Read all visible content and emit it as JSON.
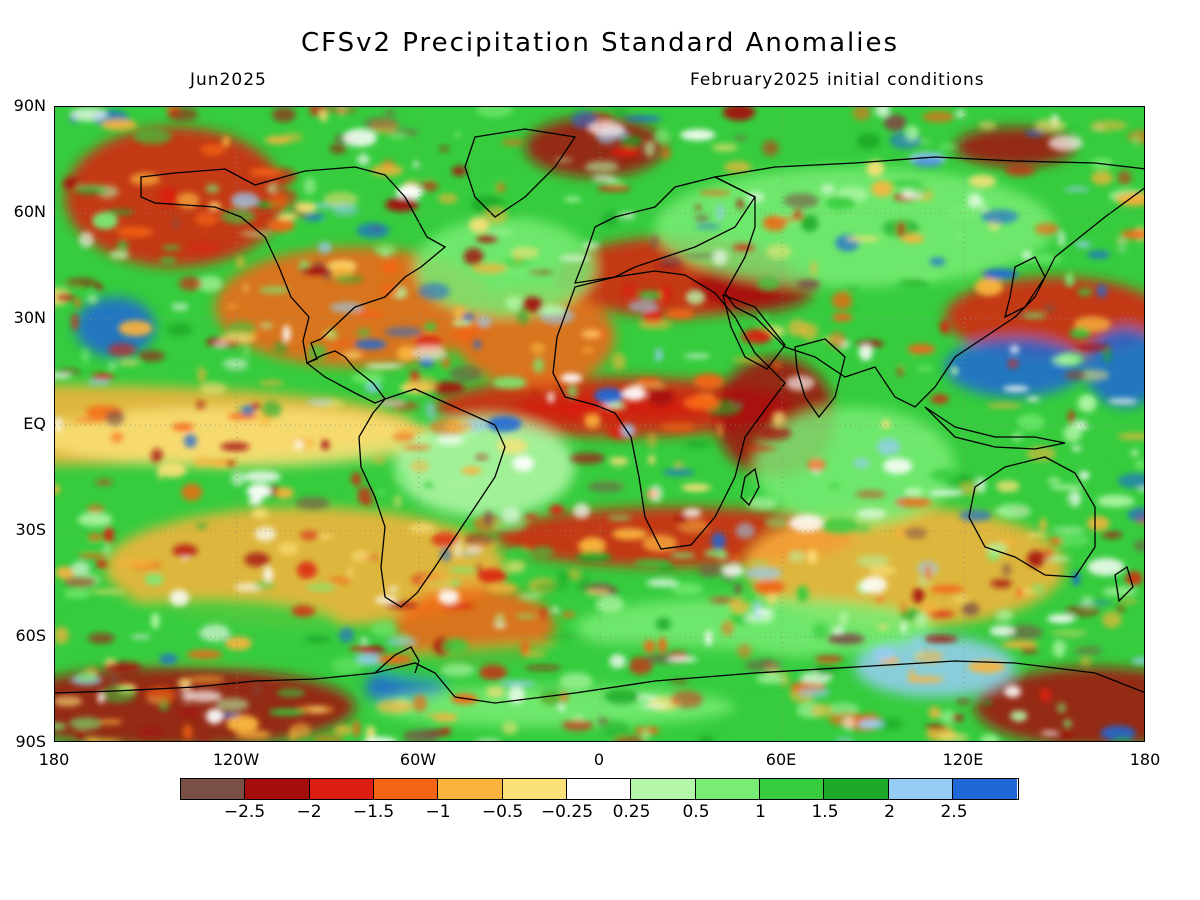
{
  "title": "CFSv2 Precipitation Standard Anomalies",
  "valid_month": "Jun2025",
  "initial_conditions": "February2025 initial conditions",
  "lat_labels": [
    "90N",
    "60N",
    "30N",
    "EQ",
    "30S",
    "60S",
    "90S"
  ],
  "lon_labels": [
    "180",
    "120W",
    "60W",
    "0",
    "60E",
    "120E",
    "180"
  ],
  "colorbar": {
    "colors": [
      "#7a5046",
      "#a50c0c",
      "#dc1e12",
      "#f56414",
      "#fab33c",
      "#fce178",
      "#ffffff",
      "#b4f7a8",
      "#78ec74",
      "#36cc3e",
      "#1eaa28",
      "#96cdf5",
      "#1f68d6"
    ],
    "labels": [
      "−2.5",
      "−2",
      "−1.5",
      "−1",
      "−0.5",
      "−0.25",
      "0.25",
      "0.5",
      "1",
      "1.5",
      "2",
      "2.5"
    ]
  },
  "map": {
    "projection": "equirectangular",
    "lon_range": [
      -180,
      180
    ],
    "lat_range": [
      -90,
      90
    ],
    "background_color": "#36cc3e"
  }
}
